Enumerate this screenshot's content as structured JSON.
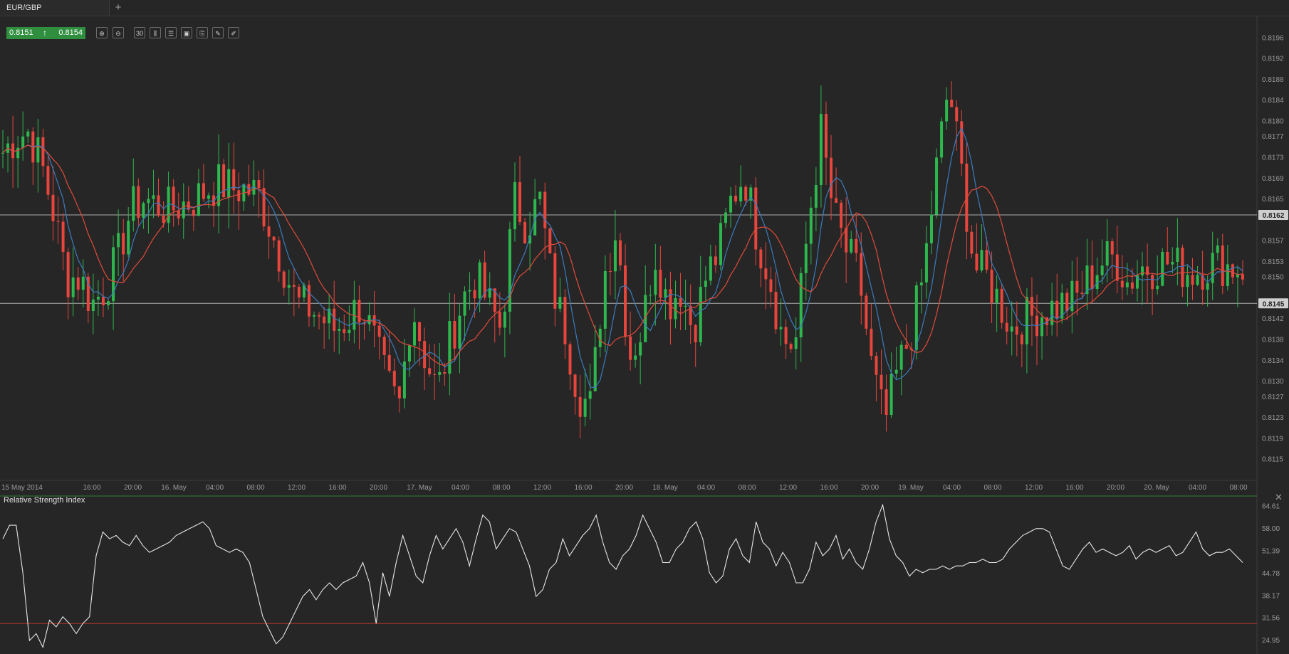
{
  "tab": {
    "label": "EUR/GBP",
    "add_label": "+"
  },
  "quote": {
    "bid": "0.8151",
    "ask": "0.8154",
    "direction_icon": "up-arrow-icon"
  },
  "toolbar": [
    {
      "name": "zoom-in-icon",
      "glyph": "⊕"
    },
    {
      "name": "zoom-out-icon",
      "glyph": "⊖"
    },
    {
      "name": "timeframe-button",
      "glyph": "30"
    },
    {
      "name": "chart-type-icon",
      "glyph": "⫼"
    },
    {
      "name": "indicators-icon",
      "glyph": "☰"
    },
    {
      "name": "save-chart-icon",
      "glyph": "▣"
    },
    {
      "name": "attach-icon",
      "glyph": "⎘"
    },
    {
      "name": "edit-icon",
      "glyph": "✎"
    },
    {
      "name": "draw-tool-icon",
      "glyph": "✐"
    }
  ],
  "colors": {
    "up": "#2db84d",
    "down": "#e8453c",
    "ma_fast": "#3a7bbf",
    "ma_slow": "#e04b3a",
    "rsi_line": "#e6e6e6",
    "rsi_level": "#c0392b",
    "hline": "#cfcfcf"
  },
  "chart_data": [
    {
      "type": "candlestick",
      "pair": "EUR/GBP",
      "y_ticks": [
        "0.8196",
        "0.8192",
        "0.8188",
        "0.8184",
        "0.8180",
        "0.8177",
        "0.8173",
        "0.8169",
        "0.8165",
        "0.8157",
        "0.8153",
        "0.8150",
        "0.8142",
        "0.8138",
        "0.8134",
        "0.8130",
        "0.8127",
        "0.8123",
        "0.8119",
        "0.8115"
      ],
      "ylim": [
        0.8111,
        0.82
      ],
      "x_ticks": [
        "15 May 2014",
        "16:00",
        "20:00",
        "16. May",
        "04:00",
        "08:00",
        "12:00",
        "16:00",
        "20:00",
        "17. May",
        "04:00",
        "08:00",
        "12:00",
        "16:00",
        "20:00",
        "18. May",
        "04:00",
        "08:00",
        "12:00",
        "16:00",
        "20:00",
        "19. May",
        "04:00",
        "08:00",
        "12:00",
        "16:00",
        "20:00",
        "20. May",
        "04:00",
        "08:00"
      ],
      "horizontal_lines": [
        {
          "value": 0.8162,
          "label": "0.8162"
        },
        {
          "value": 0.8145,
          "label": "0.8145"
        }
      ],
      "close_path": [
        0.8174,
        0.8177,
        0.8178,
        0.8172,
        0.8162,
        0.815,
        0.815,
        0.8145,
        0.8148,
        0.8154,
        0.8163,
        0.8165,
        0.8164,
        0.8163,
        0.8164,
        0.8165,
        0.8167,
        0.8168,
        0.8167,
        0.8167,
        0.8166,
        0.8159,
        0.8152,
        0.8145,
        0.8144,
        0.8142,
        0.814,
        0.8142,
        0.8145,
        0.8138,
        0.813,
        0.8125,
        0.8145,
        0.8135,
        0.8128,
        0.8138,
        0.8146,
        0.815,
        0.8145,
        0.814,
        0.8165,
        0.816,
        0.8165,
        0.8148,
        0.814,
        0.8128,
        0.8125,
        0.815,
        0.816,
        0.8135,
        0.814,
        0.8155,
        0.8145,
        0.8148,
        0.814,
        0.815,
        0.8155,
        0.8165,
        0.817,
        0.8158,
        0.815,
        0.8138,
        0.8137,
        0.816,
        0.8178,
        0.8162,
        0.8155,
        0.815,
        0.8132,
        0.8122,
        0.8132,
        0.8139,
        0.815,
        0.817,
        0.8187,
        0.817,
        0.8152,
        0.815,
        0.8145,
        0.814,
        0.8142,
        0.8143,
        0.8144,
        0.8145,
        0.8146,
        0.815,
        0.8153,
        0.8154,
        0.8149,
        0.8152,
        0.8152,
        0.8153,
        0.8152,
        0.8151,
        0.8152,
        0.8153,
        0.8152,
        0.8152
      ],
      "ma_fast": {
        "color": "#3a7bbf"
      },
      "ma_slow": {
        "color": "#e04b3a"
      }
    },
    {
      "type": "line",
      "title": "Relative Strength Index",
      "y_ticks": [
        "64.61",
        "58.00",
        "51.39",
        "44.78",
        "38.17",
        "31.56",
        "24.95"
      ],
      "ylim": [
        21.0,
        67.0
      ],
      "level": 30,
      "values": [
        55,
        59,
        59,
        45,
        25,
        27,
        23,
        31,
        29,
        32,
        30,
        27,
        30,
        32,
        50,
        57,
        55,
        56,
        54,
        53,
        56,
        53,
        51,
        52,
        53,
        54,
        56,
        57,
        58,
        59,
        60,
        58,
        53,
        52,
        51,
        52,
        51,
        48,
        40,
        32,
        28,
        24,
        26,
        30,
        34,
        38,
        40,
        37,
        40,
        42,
        40,
        42,
        43,
        44,
        48,
        42,
        30,
        45,
        38,
        48,
        56,
        50,
        44,
        42,
        50,
        56,
        52,
        55,
        58,
        54,
        47,
        55,
        62,
        60,
        52,
        55,
        58,
        57,
        52,
        47,
        38,
        40,
        46,
        48,
        55,
        50,
        53,
        56,
        58,
        62,
        54,
        48,
        46,
        50,
        52,
        56,
        62,
        58,
        54,
        48,
        48,
        52,
        54,
        58,
        60,
        55,
        45,
        42,
        44,
        52,
        55,
        50,
        48,
        60,
        54,
        52,
        47,
        51,
        48,
        42,
        42,
        46,
        54,
        50,
        52,
        56,
        49,
        52,
        48,
        46,
        52,
        60,
        65,
        55,
        50,
        48,
        44,
        46,
        45,
        46,
        46,
        47,
        46,
        47,
        47,
        48,
        48,
        49,
        48,
        48,
        49,
        52,
        54,
        56,
        57,
        58,
        58,
        57,
        52,
        47,
        46,
        49,
        52,
        54,
        51,
        52,
        51,
        50,
        51,
        53,
        49,
        51,
        52,
        51,
        52,
        53,
        50,
        51,
        54,
        57,
        52,
        50,
        51,
        51,
        52,
        50,
        48
      ]
    }
  ]
}
